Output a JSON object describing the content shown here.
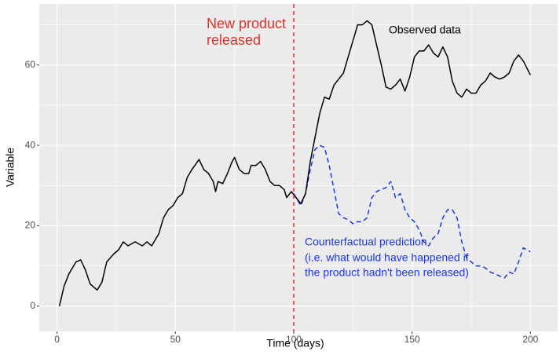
{
  "chart_data": {
    "type": "line",
    "xlabel": "Time (days)",
    "ylabel": "Variable",
    "xlim": [
      -7.5,
      211.5
    ],
    "ylim": [
      -6.3,
      75.2
    ],
    "xticks": [
      0,
      50,
      100,
      150,
      200
    ],
    "yticks": [
      0,
      20,
      40,
      60
    ],
    "grid": true,
    "vline": 100,
    "vline_color": "#e0302b",
    "vline_label": [
      "New product",
      "released"
    ],
    "series": [
      {
        "name": "Observed data",
        "color": "#000000",
        "dash": false,
        "x": [
          1,
          3,
          5,
          8,
          10,
          12,
          14,
          17,
          19,
          21,
          24,
          26,
          28,
          30,
          33,
          36,
          38,
          40,
          43,
          45,
          47,
          49,
          51,
          53,
          55,
          57,
          60,
          62,
          64,
          66,
          67,
          68,
          70,
          72,
          74,
          75,
          77,
          79,
          81,
          82,
          84,
          86,
          88,
          90,
          92,
          94,
          96,
          97,
          99,
          101,
          103,
          105,
          107,
          109,
          111,
          113,
          115,
          117,
          119,
          121,
          123,
          125,
          127,
          129,
          131,
          133,
          135,
          137,
          139,
          141,
          143,
          145,
          147,
          149,
          151,
          153,
          155,
          157,
          159,
          161,
          163,
          165,
          167,
          169,
          171,
          173,
          175,
          177,
          179,
          181,
          183,
          185,
          187,
          189,
          191,
          193,
          195,
          197,
          200
        ],
        "values": [
          0,
          5,
          8,
          11,
          11.5,
          9,
          5.5,
          4,
          6,
          11,
          13,
          14,
          16,
          15,
          16,
          15,
          16,
          15,
          18,
          22,
          24,
          25,
          27,
          28,
          32,
          34,
          36.5,
          34,
          33,
          31,
          28.5,
          31,
          30.5,
          33,
          36,
          37,
          34,
          33,
          33,
          35,
          35,
          36,
          34,
          31,
          30,
          30,
          29,
          27,
          28.5,
          27,
          25.5,
          28,
          36,
          42,
          48,
          52,
          51.5,
          55,
          56.5,
          58,
          62,
          66,
          70,
          70,
          71,
          70,
          65,
          60,
          54.5,
          54,
          55,
          56.5,
          53.5,
          57,
          62,
          63.5,
          63.5,
          65,
          63,
          62,
          64.5,
          62,
          56,
          53,
          52,
          54,
          53,
          53,
          55,
          56,
          58,
          57,
          56.5,
          57,
          58,
          61,
          62.5,
          61,
          57.5
        ]
      },
      {
        "name": "Counterfactual prediction",
        "color": "#1a36e6",
        "dash": true,
        "note": [
          "(i.e. what would have happened if",
          "the product hadn't been released)"
        ],
        "x": [
          100,
          103,
          105,
          107,
          109,
          111,
          113,
          115,
          117,
          119,
          121,
          123,
          125,
          127,
          129,
          131,
          133,
          135,
          137,
          139,
          141,
          143,
          145,
          147,
          149,
          151,
          153,
          155,
          157,
          159,
          161,
          163,
          165,
          167,
          169,
          171,
          173,
          175,
          177,
          179,
          181,
          183,
          185,
          187,
          189,
          191,
          193,
          195,
          197,
          200
        ],
        "values": [
          28,
          25,
          28,
          34,
          39,
          40,
          39.5,
          35,
          29,
          23,
          22,
          21.5,
          20.5,
          21,
          21,
          22,
          27,
          28.5,
          29,
          29.5,
          31,
          27,
          28,
          24,
          22,
          21,
          19,
          16,
          15,
          17,
          18,
          22,
          24,
          24,
          22,
          16,
          12,
          11,
          10,
          10,
          9.5,
          8.5,
          8,
          7.5,
          7,
          8.5,
          8,
          11,
          14.5,
          13.5
        ]
      }
    ]
  }
}
